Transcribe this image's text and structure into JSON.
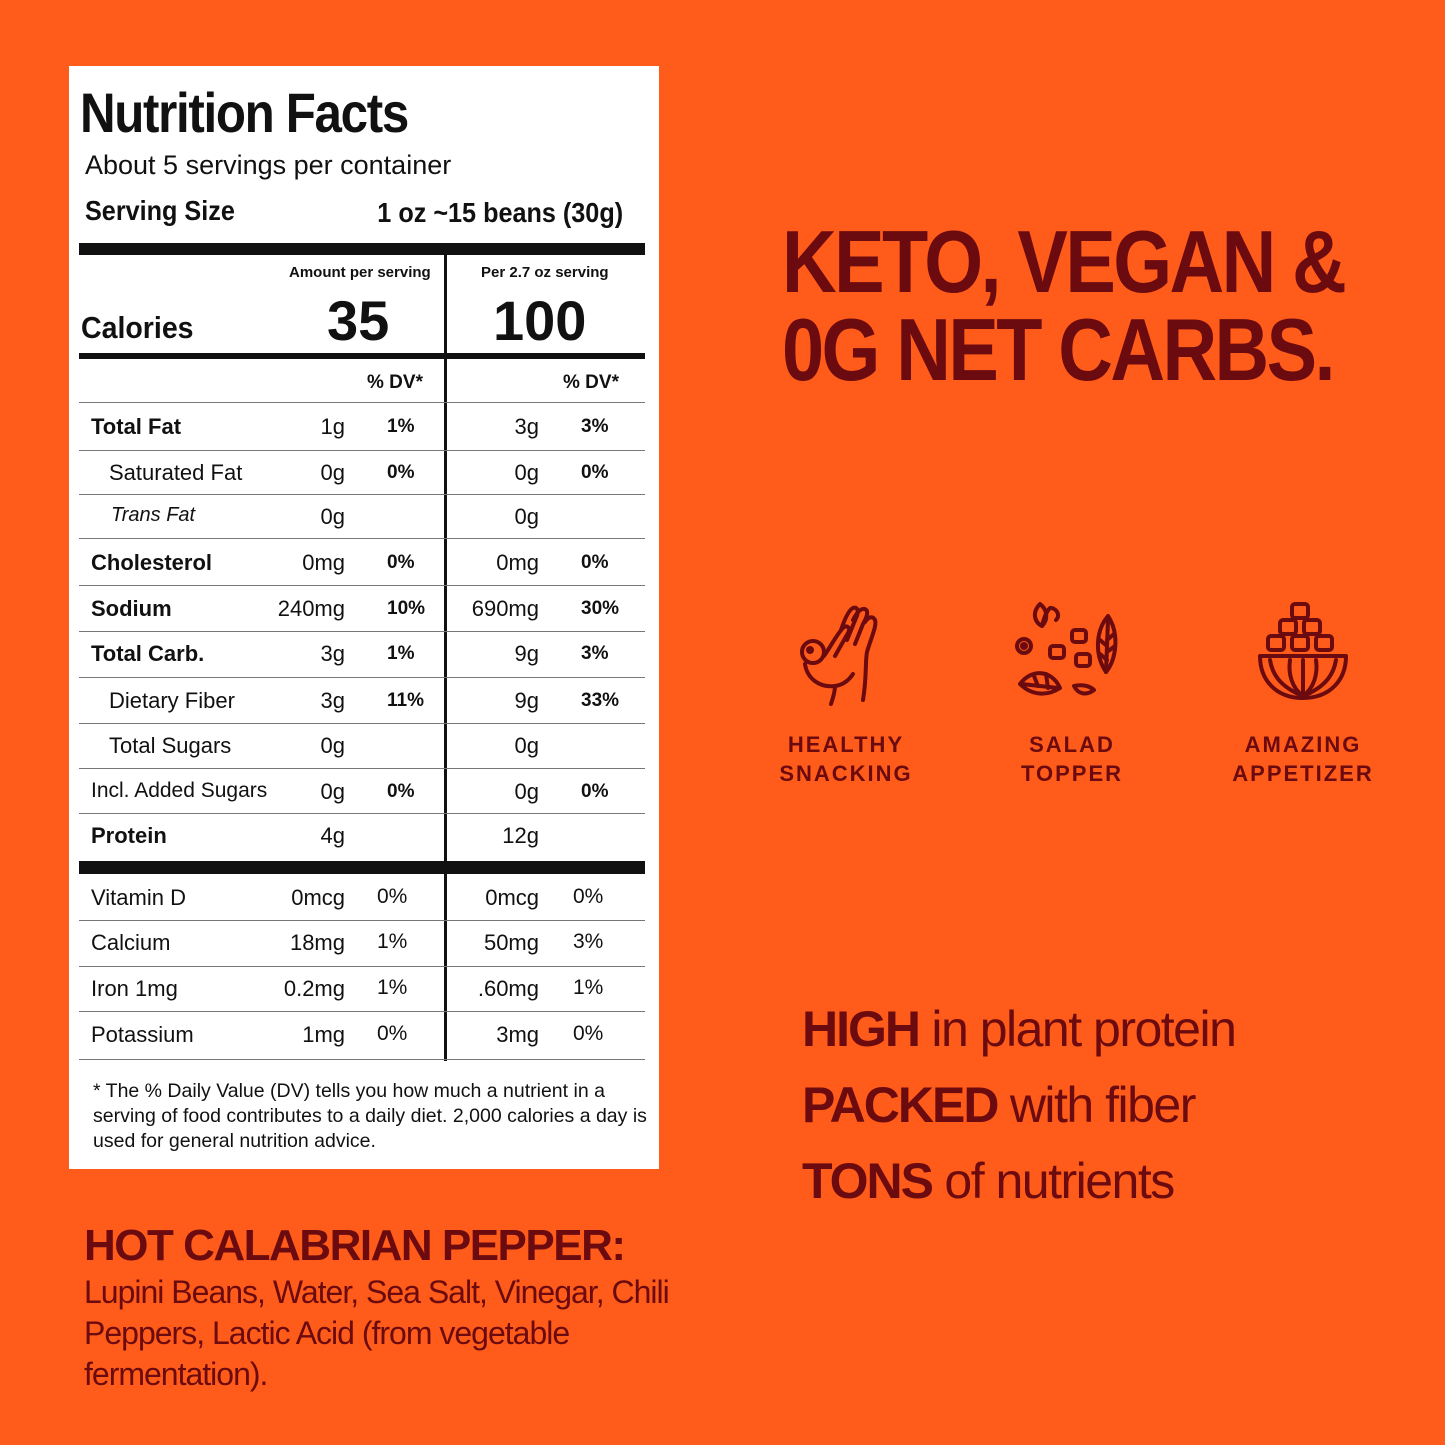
{
  "label": {
    "title": "Nutrition Facts",
    "servings": "About 5 servings per container",
    "serving_size_label": "Serving Size",
    "serving_size_value": "1 oz ~15 beans (30g)",
    "col1_header": "Amount per serving",
    "col2_header": "Per 2.7 oz serving",
    "calories_label": "Calories",
    "calories_1": "35",
    "calories_2": "100",
    "dv_header": "% DV*",
    "rows": [
      {
        "name": "Total Fat",
        "v1": "1g",
        "d1": "1%",
        "v2": "3g",
        "d2": "3%"
      },
      {
        "name": "Saturated Fat",
        "v1": "0g",
        "d1": "0%",
        "v2": "0g",
        "d2": "0%"
      },
      {
        "name": "Trans Fat",
        "v1": "0g",
        "d1": "",
        "v2": "0g",
        "d2": ""
      },
      {
        "name": "Cholesterol",
        "v1": "0mg",
        "d1": "0%",
        "v2": "0mg",
        "d2": "0%"
      },
      {
        "name": "Sodium",
        "v1": "240mg",
        "d1": "10%",
        "v2": "690mg",
        "d2": "30%"
      },
      {
        "name": "Total Carb.",
        "v1": "3g",
        "d1": "1%",
        "v2": "9g",
        "d2": "3%"
      },
      {
        "name": "Dietary Fiber",
        "v1": "3g",
        "d1": "11%",
        "v2": "9g",
        "d2": "33%"
      },
      {
        "name": "Total Sugars",
        "v1": "0g",
        "d1": "",
        "v2": "0g",
        "d2": ""
      },
      {
        "name": "Incl. Added Sugars",
        "v1": "0g",
        "d1": "0%",
        "v2": "0g",
        "d2": "0%"
      },
      {
        "name": "Protein",
        "v1": "4g",
        "d1": "",
        "v2": "12g",
        "d2": ""
      }
    ],
    "vitamins": [
      {
        "name": "Vitamin D",
        "v1": "0mcg",
        "d1": "0%",
        "v2": "0mcg",
        "d2": "0%"
      },
      {
        "name": "Calcium",
        "v1": "18mg",
        "d1": "1%",
        "v2": "50mg",
        "d2": "3%"
      },
      {
        "name": "Iron 1mg",
        "v1": "0.2mg",
        "d1": "1%",
        "v2": ".60mg",
        "d2": "1%"
      },
      {
        "name": "Potassium",
        "v1": "1mg",
        "d1": "0%",
        "v2": "3mg",
        "d2": "0%"
      }
    ],
    "footnote": "* The % Daily Value (DV) tells you how much a nutrient in a serving of food contributes to a daily diet. 2,000 calories a day is used for general nutrition advice."
  },
  "headline": {
    "line1": "KETO, VEGAN &",
    "line2": "0G NET CARBS."
  },
  "features": [
    {
      "icon": "ok-hand-icon",
      "line1": "HEALTHY",
      "line2": "SNACKING"
    },
    {
      "icon": "salad-icon",
      "line1": "SALAD",
      "line2": "TOPPER"
    },
    {
      "icon": "bowl-icon",
      "line1": "AMAZING",
      "line2": "APPETIZER"
    }
  ],
  "benefits": [
    {
      "bold": "HIGH",
      "rest": " in plant protein"
    },
    {
      "bold": "PACKED",
      "rest": " with fiber"
    },
    {
      "bold": "TONS",
      "rest": " of nutrients"
    }
  ],
  "ingredients": {
    "title": "HOT CALABRIAN PEPPER:",
    "text": "Lupini Beans, Water, Sea Salt, Vinegar, Chili Peppers, Lactic Acid (from vegetable fermentation)."
  },
  "colors": {
    "background": "#ff5b1a",
    "text_dark": "#6b0a0f",
    "label_bg": "#ffffff"
  }
}
